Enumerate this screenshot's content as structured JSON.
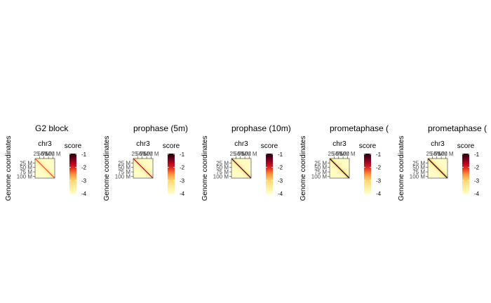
{
  "chart_data": {
    "type": "heatmap",
    "panels": [
      {
        "title": "G2 block",
        "ylabel": "Genome coordinates",
        "chromosome": "chr3",
        "x_ticks": [
          "25 M",
          "50 M",
          "75 M",
          "100 M"
        ],
        "y_ticks": [
          "25 M",
          "50 M",
          "75 M",
          "100 M"
        ],
        "legend_title": "score",
        "legend_ticks": [
          "-1",
          "-2",
          "-3",
          "-4"
        ],
        "diagonal_strength": 0.55
      },
      {
        "title": "prophase (5m)",
        "ylabel": "Genome coordinates",
        "chromosome": "chr3",
        "x_ticks": [
          "25 M",
          "50 M",
          "75 M",
          "100 M"
        ],
        "y_ticks": [
          "25 M",
          "50 M",
          "75 M",
          "100 M"
        ],
        "legend_title": "score",
        "legend_ticks": [
          "-1",
          "-2",
          "-3",
          "-4"
        ],
        "diagonal_strength": 0.75
      },
      {
        "title": "prophase (10m)",
        "ylabel": "Genome coordinates",
        "chromosome": "chr3",
        "x_ticks": [
          "25 M",
          "50 M",
          "75 M",
          "100 M"
        ],
        "y_ticks": [
          "25 M",
          "50 M",
          "75 M",
          "100 M"
        ],
        "legend_title": "score",
        "legend_ticks": [
          "-1",
          "-2",
          "-3",
          "-4"
        ],
        "diagonal_strength": 0.9
      },
      {
        "title": "prometaphase (",
        "ylabel": "Genome coordinates",
        "chromosome": "chr3",
        "x_ticks": [
          "25 M",
          "50 M",
          "75 M",
          "100 M"
        ],
        "y_ticks": [
          "25 M",
          "50 M",
          "75 M",
          "100 M"
        ],
        "legend_title": "score",
        "legend_ticks": [
          "-1",
          "-2",
          "-3",
          "-4"
        ],
        "diagonal_strength": 1.0
      },
      {
        "title": "prometaphase (",
        "ylabel": "Genome coordinates",
        "chromosome": "chr3",
        "x_ticks": [
          "25 M",
          "50 M",
          "75 M",
          "100 M"
        ],
        "y_ticks": [
          "25 M",
          "50 M",
          "75 M",
          "100 M"
        ],
        "legend_title": "score",
        "legend_ticks": [
          "-1",
          "-2",
          "-3",
          "-4"
        ],
        "diagonal_strength": 1.0
      }
    ],
    "axis_range": [
      0,
      110
    ],
    "color_scale": [
      "#ffffcc",
      "#ffeda0",
      "#fed976",
      "#fd8d3c",
      "#e31a1c",
      "#800026",
      "#1a0000"
    ],
    "grid": false,
    "legend_placement": "right"
  }
}
